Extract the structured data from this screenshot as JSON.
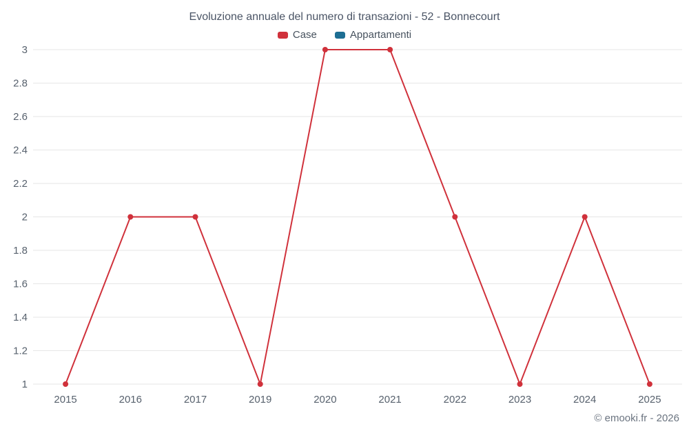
{
  "title": "Evoluzione annuale del numero di transazioni - 52 - Bonnecourt",
  "footer": "© emooki.fr - 2026",
  "legend": [
    {
      "label": "Case",
      "color": "#d0313b"
    },
    {
      "label": "Appartamenti",
      "color": "#1d6e93"
    }
  ],
  "colors": {
    "grid": "#e6e6e6",
    "axis_text": "#57616d",
    "title_text": "#4a5465",
    "case_red": "#d0313b",
    "appartamenti_blue": "#1d6e93"
  },
  "chart_data": {
    "type": "line",
    "title": "Evoluzione annuale del numero di transazioni - 52 - Bonnecourt",
    "categories": [
      "2015",
      "2016",
      "2017",
      "2019",
      "2020",
      "2021",
      "2022",
      "2023",
      "2024",
      "2025"
    ],
    "series": [
      {
        "name": "Case",
        "color": "#d0313b",
        "values": [
          1,
          2,
          2,
          1,
          3,
          3,
          2,
          1,
          2,
          1
        ]
      },
      {
        "name": "Appartamenti",
        "color": "#1d6e93",
        "values": []
      }
    ],
    "xlabel": "",
    "ylabel": "",
    "ylim": [
      1,
      3
    ],
    "ytick_step": 0.2,
    "yticks": [
      1,
      1.2,
      1.4,
      1.6,
      1.8,
      2,
      2.2,
      2.4,
      2.6,
      2.8,
      3
    ],
    "grid": true,
    "legend_position": "top",
    "marker": "circle"
  }
}
